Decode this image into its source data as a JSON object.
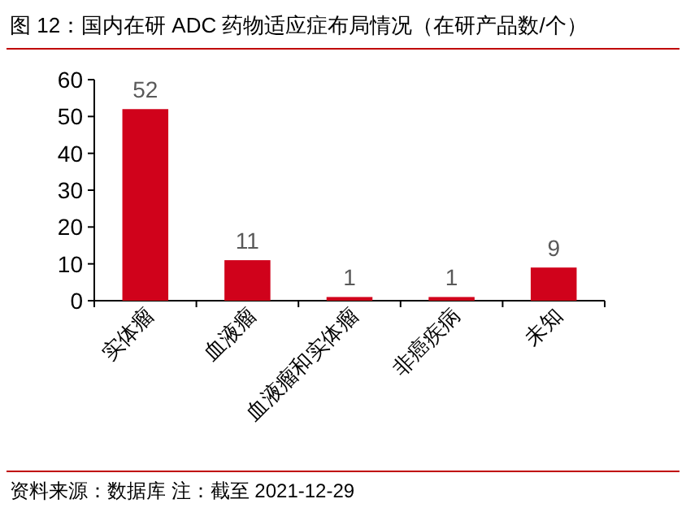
{
  "chart_data": {
    "type": "bar",
    "title": "图 12：国内在研 ADC 药物适应症布局情况（在研产品数/个）",
    "categories": [
      "实体瘤",
      "血液瘤",
      "血液瘤和实体瘤",
      "非癌疾病",
      "未知"
    ],
    "values": [
      52,
      11,
      1,
      1,
      9
    ],
    "color": "#d0021b",
    "ylim": [
      0,
      60
    ],
    "yticks": [
      0,
      10,
      20,
      30,
      40,
      50,
      60
    ],
    "data_labels": true,
    "grid": false,
    "annotations": [
      "资料来源：数据库 注：截至 2021-12-29"
    ]
  }
}
